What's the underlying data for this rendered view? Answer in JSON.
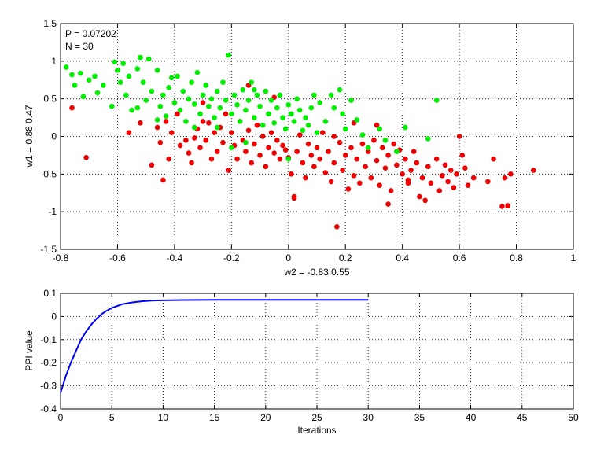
{
  "colors": {
    "background": "#ffffff",
    "axis": "#000000",
    "grid": "#000000",
    "green_points": "#00ee00",
    "red_points": "#ee0000",
    "line": "#0000ff"
  },
  "chart_data": [
    {
      "type": "scatter",
      "xlabel": "w2 = -0.83  0.55",
      "ylabel": "w1 = 0.88  0.47",
      "xlim": [
        -0.8,
        1
      ],
      "ylim": [
        -1.5,
        1.5
      ],
      "xticks": [
        -0.8,
        -0.6,
        -0.4,
        -0.2,
        0,
        0.2,
        0.4,
        0.6,
        0.8,
        1
      ],
      "xtick_labels": [
        "-0.8",
        "-0.6",
        "-0.4",
        "-0.2",
        "0",
        "0.2",
        "0.4",
        "0.6",
        "0.8",
        "1"
      ],
      "yticks": [
        -1.5,
        -1,
        -0.5,
        0,
        0.5,
        1,
        1.5
      ],
      "ytick_labels": [
        "-1.5",
        "-1",
        "-0.5",
        "0",
        "0.5",
        "1",
        "1.5"
      ],
      "grid": true,
      "annotations": [
        "P = 0.07202",
        "N = 30"
      ],
      "series": [
        {
          "color": "#00ee00",
          "points": [
            [
              -0.78,
              0.92
            ],
            [
              -0.76,
              0.82
            ],
            [
              -0.75,
              0.68
            ],
            [
              -0.73,
              0.84
            ],
            [
              -0.72,
              0.53
            ],
            [
              -0.7,
              0.75
            ],
            [
              -0.68,
              0.8
            ],
            [
              -0.67,
              0.58
            ],
            [
              -0.65,
              0.68
            ],
            [
              -0.62,
              0.4
            ],
            [
              -0.61,
              0.99
            ],
            [
              -0.6,
              0.88
            ],
            [
              -0.59,
              0.72
            ],
            [
              -0.58,
              0.97
            ],
            [
              -0.57,
              0.55
            ],
            [
              -0.56,
              0.8
            ],
            [
              -0.55,
              0.35
            ],
            [
              -0.53,
              0.9
            ],
            [
              -0.52,
              1.05
            ],
            [
              -0.51,
              0.72
            ],
            [
              -0.5,
              0.48
            ],
            [
              -0.49,
              1.03
            ],
            [
              -0.48,
              0.6
            ],
            [
              -0.46,
              0.88
            ],
            [
              -0.45,
              0.4
            ],
            [
              -0.44,
              0.55
            ],
            [
              -0.43,
              0.27
            ],
            [
              -0.42,
              0.65
            ],
            [
              -0.41,
              0.78
            ],
            [
              -0.4,
              0.45
            ],
            [
              -0.39,
              0.8
            ],
            [
              -0.38,
              0.35
            ],
            [
              -0.37,
              0.6
            ],
            [
              -0.36,
              0.2
            ],
            [
              -0.35,
              0.5
            ],
            [
              -0.34,
              0.72
            ],
            [
              -0.33,
              0.43
            ],
            [
              -0.32,
              0.85
            ],
            [
              -0.31,
              0.3
            ],
            [
              -0.3,
              0.55
            ],
            [
              -0.29,
              0.68
            ],
            [
              -0.28,
              0.4
            ],
            [
              -0.27,
              0.5
            ],
            [
              -0.26,
              0.25
            ],
            [
              -0.25,
              0.6
            ],
            [
              -0.24,
              0.38
            ],
            [
              -0.23,
              0.72
            ],
            [
              -0.22,
              0.48
            ],
            [
              -0.21,
              1.08
            ],
            [
              -0.2,
              0.3
            ],
            [
              -0.19,
              0.55
            ],
            [
              -0.18,
              0.42
            ],
            [
              -0.17,
              0.2
            ],
            [
              -0.16,
              0.62
            ],
            [
              -0.15,
              0.35
            ],
            [
              -0.14,
              0.48
            ],
            [
              -0.13,
              0.72
            ],
            [
              -0.12,
              0.25
            ],
            [
              -0.11,
              0.55
            ],
            [
              -0.1,
              0.4
            ],
            [
              -0.09,
              0.15
            ],
            [
              -0.08,
              0.6
            ],
            [
              -0.07,
              0.3
            ],
            [
              -0.06,
              0.48
            ],
            [
              -0.05,
              0.18
            ],
            [
              -0.04,
              0.38
            ],
            [
              -0.03,
              0.55
            ],
            [
              -0.02,
              0.25
            ],
            [
              -0.01,
              0.1
            ],
            [
              0.0,
              0.42
            ],
            [
              0.01,
              0.3
            ],
            [
              0.02,
              0.2
            ],
            [
              0.03,
              0.5
            ],
            [
              0.04,
              0.35
            ],
            [
              0.05,
              0.08
            ],
            [
              0.06,
              0.25
            ],
            [
              0.08,
              0.38
            ],
            [
              0.09,
              0.55
            ],
            [
              0.1,
              0.05
            ],
            [
              0.11,
              0.45
            ],
            [
              0.13,
              0.2
            ],
            [
              0.15,
              0.55
            ],
            [
              0.16,
              0.38
            ],
            [
              0.18,
              0.62
            ],
            [
              0.19,
              0.3
            ],
            [
              0.2,
              0.1
            ],
            [
              0.22,
              0.48
            ],
            [
              0.24,
              0.22
            ],
            [
              0.26,
              0.02
            ],
            [
              0.28,
              -0.15
            ],
            [
              0.32,
              0.1
            ],
            [
              0.34,
              -0.05
            ],
            [
              0.38,
              -0.2
            ],
            [
              0.41,
              0.12
            ],
            [
              0.49,
              -0.03
            ],
            [
              0.52,
              0.48
            ],
            [
              -0.2,
              -0.15
            ],
            [
              -0.15,
              -0.08
            ],
            [
              0.0,
              -0.3
            ],
            [
              -0.25,
              0.12
            ],
            [
              -0.33,
              0.12
            ],
            [
              -0.46,
              0.22
            ],
            [
              -0.53,
              0.38
            ],
            [
              -0.12,
              0.62
            ],
            [
              0.07,
              0.15
            ]
          ]
        },
        {
          "color": "#ee0000",
          "points": [
            [
              -0.76,
              0.38
            ],
            [
              -0.71,
              -0.28
            ],
            [
              -0.56,
              0.05
            ],
            [
              -0.52,
              0.18
            ],
            [
              -0.48,
              -0.38
            ],
            [
              -0.46,
              0.12
            ],
            [
              -0.45,
              -0.08
            ],
            [
              -0.44,
              -0.58
            ],
            [
              -0.43,
              0.2
            ],
            [
              -0.42,
              -0.3
            ],
            [
              -0.41,
              0.05
            ],
            [
              -0.39,
              0.3
            ],
            [
              -0.38,
              -0.12
            ],
            [
              -0.36,
              -0.05
            ],
            [
              -0.35,
              -0.22
            ],
            [
              -0.34,
              -0.35
            ],
            [
              -0.33,
              -0.02
            ],
            [
              -0.32,
              0.1
            ],
            [
              -0.31,
              -0.15
            ],
            [
              -0.3,
              0.45
            ],
            [
              -0.29,
              -0.05
            ],
            [
              -0.28,
              0.18
            ],
            [
              -0.27,
              -0.3
            ],
            [
              -0.26,
              0.05
            ],
            [
              -0.25,
              -0.2
            ],
            [
              -0.24,
              0.12
            ],
            [
              -0.23,
              -0.08
            ],
            [
              -0.22,
              0.3
            ],
            [
              -0.21,
              -0.45
            ],
            [
              -0.2,
              0.05
            ],
            [
              -0.19,
              -0.12
            ],
            [
              -0.18,
              -0.3
            ],
            [
              -0.17,
              0.2
            ],
            [
              -0.16,
              -0.05
            ],
            [
              -0.15,
              -0.2
            ],
            [
              -0.14,
              0.08
            ],
            [
              -0.13,
              -0.35
            ],
            [
              -0.12,
              -0.1
            ],
            [
              -0.11,
              0.15
            ],
            [
              -0.1,
              -0.25
            ],
            [
              -0.09,
              0.0
            ],
            [
              -0.08,
              -0.4
            ],
            [
              -0.07,
              -0.15
            ],
            [
              -0.06,
              0.05
            ],
            [
              -0.05,
              -0.22
            ],
            [
              -0.04,
              -0.05
            ],
            [
              -0.03,
              -0.3
            ],
            [
              -0.02,
              -0.12
            ],
            [
              -0.01,
              -0.18
            ],
            [
              0.0,
              -0.28
            ],
            [
              0.01,
              -0.5
            ],
            [
              0.02,
              -0.82
            ],
            [
              0.03,
              -0.2
            ],
            [
              0.04,
              0.02
            ],
            [
              0.05,
              -0.35
            ],
            [
              0.06,
              -0.55
            ],
            [
              0.07,
              -0.1
            ],
            [
              0.08,
              -0.25
            ],
            [
              0.09,
              -0.4
            ],
            [
              0.1,
              -0.15
            ],
            [
              0.11,
              -0.3
            ],
            [
              0.12,
              0.05
            ],
            [
              0.13,
              -0.48
            ],
            [
              0.14,
              -0.2
            ],
            [
              0.15,
              -0.6
            ],
            [
              0.16,
              -0.35
            ],
            [
              0.17,
              -1.2
            ],
            [
              0.18,
              -0.08
            ],
            [
              0.19,
              -0.45
            ],
            [
              0.2,
              -0.25
            ],
            [
              0.21,
              -0.7
            ],
            [
              0.22,
              -0.15
            ],
            [
              0.23,
              -0.52
            ],
            [
              0.24,
              -0.3
            ],
            [
              0.25,
              -0.62
            ],
            [
              0.26,
              -0.1
            ],
            [
              0.27,
              -0.4
            ],
            [
              0.28,
              -0.2
            ],
            [
              0.29,
              -0.55
            ],
            [
              0.3,
              -0.05
            ],
            [
              0.31,
              -0.32
            ],
            [
              0.32,
              -0.65
            ],
            [
              0.33,
              -0.15
            ],
            [
              0.34,
              -0.42
            ],
            [
              0.35,
              -0.25
            ],
            [
              0.36,
              -0.72
            ],
            [
              0.37,
              -0.1
            ],
            [
              0.38,
              -0.38
            ],
            [
              0.39,
              -0.18
            ],
            [
              0.4,
              -0.5
            ],
            [
              0.41,
              -0.3
            ],
            [
              0.42,
              -0.62
            ],
            [
              0.43,
              -0.45
            ],
            [
              0.44,
              -0.2
            ],
            [
              0.45,
              -0.35
            ],
            [
              0.46,
              -0.8
            ],
            [
              0.47,
              -0.55
            ],
            [
              0.48,
              -0.85
            ],
            [
              0.49,
              -0.4
            ],
            [
              0.5,
              -0.62
            ],
            [
              0.52,
              -0.3
            ],
            [
              0.53,
              -0.72
            ],
            [
              0.54,
              -0.52
            ],
            [
              0.55,
              -0.38
            ],
            [
              0.56,
              -0.6
            ],
            [
              0.57,
              -0.45
            ],
            [
              0.58,
              -0.68
            ],
            [
              0.59,
              -0.5
            ],
            [
              0.6,
              0.0
            ],
            [
              0.61,
              -0.25
            ],
            [
              0.62,
              -0.42
            ],
            [
              0.63,
              -0.65
            ],
            [
              0.65,
              -0.55
            ],
            [
              0.7,
              -0.6
            ],
            [
              0.72,
              -0.3
            ],
            [
              0.76,
              -0.55
            ],
            [
              0.77,
              -0.92
            ],
            [
              0.78,
              -0.5
            ],
            [
              0.86,
              -0.45
            ],
            [
              0.75,
              -0.93
            ],
            [
              -0.05,
              0.52
            ],
            [
              -0.14,
              0.68
            ],
            [
              0.16,
              0.0
            ],
            [
              0.23,
              0.18
            ],
            [
              0.31,
              0.15
            ],
            [
              0.35,
              -0.9
            ],
            [
              -0.3,
              0.2
            ],
            [
              0.02,
              -0.8
            ],
            [
              0.42,
              -0.58
            ]
          ]
        }
      ]
    },
    {
      "type": "line",
      "xlabel": "Iterations",
      "ylabel": "PPI value",
      "xlim": [
        0,
        50
      ],
      "ylim": [
        -0.4,
        0.1
      ],
      "xticks": [
        0,
        5,
        10,
        15,
        20,
        25,
        30,
        35,
        40,
        45,
        50
      ],
      "xtick_labels": [
        "0",
        "5",
        "10",
        "15",
        "20",
        "25",
        "30",
        "35",
        "40",
        "45",
        "50"
      ],
      "yticks": [
        -0.4,
        -0.3,
        -0.2,
        -0.1,
        0,
        0.1
      ],
      "ytick_labels": [
        "-0.4",
        "-0.3",
        "-0.2",
        "-0.1",
        "0",
        "0.1"
      ],
      "grid": true,
      "series": [
        {
          "color": "#0000ff",
          "x": [
            0,
            0.5,
            1,
            1.5,
            2,
            2.5,
            3,
            3.5,
            4,
            4.5,
            5,
            6,
            7,
            8,
            9,
            10,
            12,
            15,
            20,
            25,
            30
          ],
          "y": [
            -0.33,
            -0.26,
            -0.2,
            -0.15,
            -0.1,
            -0.065,
            -0.035,
            -0.01,
            0.01,
            0.025,
            0.037,
            0.053,
            0.061,
            0.066,
            0.069,
            0.07,
            0.071,
            0.072,
            0.072,
            0.072,
            0.072
          ]
        }
      ]
    }
  ]
}
